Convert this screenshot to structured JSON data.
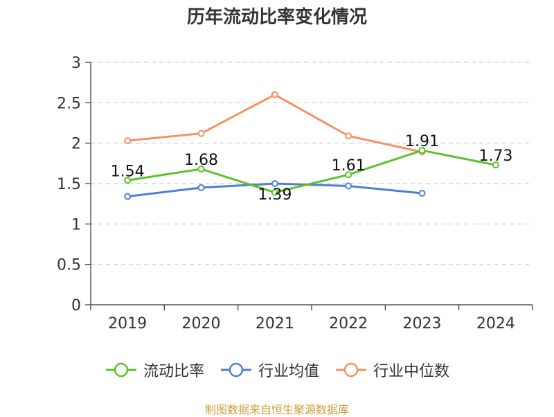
{
  "chart_data": {
    "type": "line",
    "title": "历年流动比率变化情况",
    "categories": [
      "2019",
      "2020",
      "2021",
      "2022",
      "2023",
      "2024"
    ],
    "ylim": [
      0,
      3
    ],
    "yticks": [
      "0",
      "0.5",
      "1",
      "1.5",
      "2",
      "2.5",
      "3"
    ],
    "grid": true,
    "legend_position": "bottom",
    "series": [
      {
        "name": "流动比率",
        "color": "#5cc22b",
        "values": [
          1.54,
          1.68,
          1.39,
          1.61,
          1.91,
          1.73
        ],
        "labels": [
          "1.54",
          "1.68",
          "1.39",
          "1.61",
          "1.91",
          "1.73"
        ]
      },
      {
        "name": "行业均值",
        "color": "#4e7fd6",
        "values": [
          1.34,
          1.45,
          1.5,
          1.47,
          1.38,
          null
        ]
      },
      {
        "name": "行业中位数",
        "color": "#f59260",
        "values": [
          2.03,
          2.12,
          2.6,
          2.09,
          1.89,
          null
        ]
      }
    ]
  },
  "source_note": "制图数据来自恒生聚源数据库"
}
